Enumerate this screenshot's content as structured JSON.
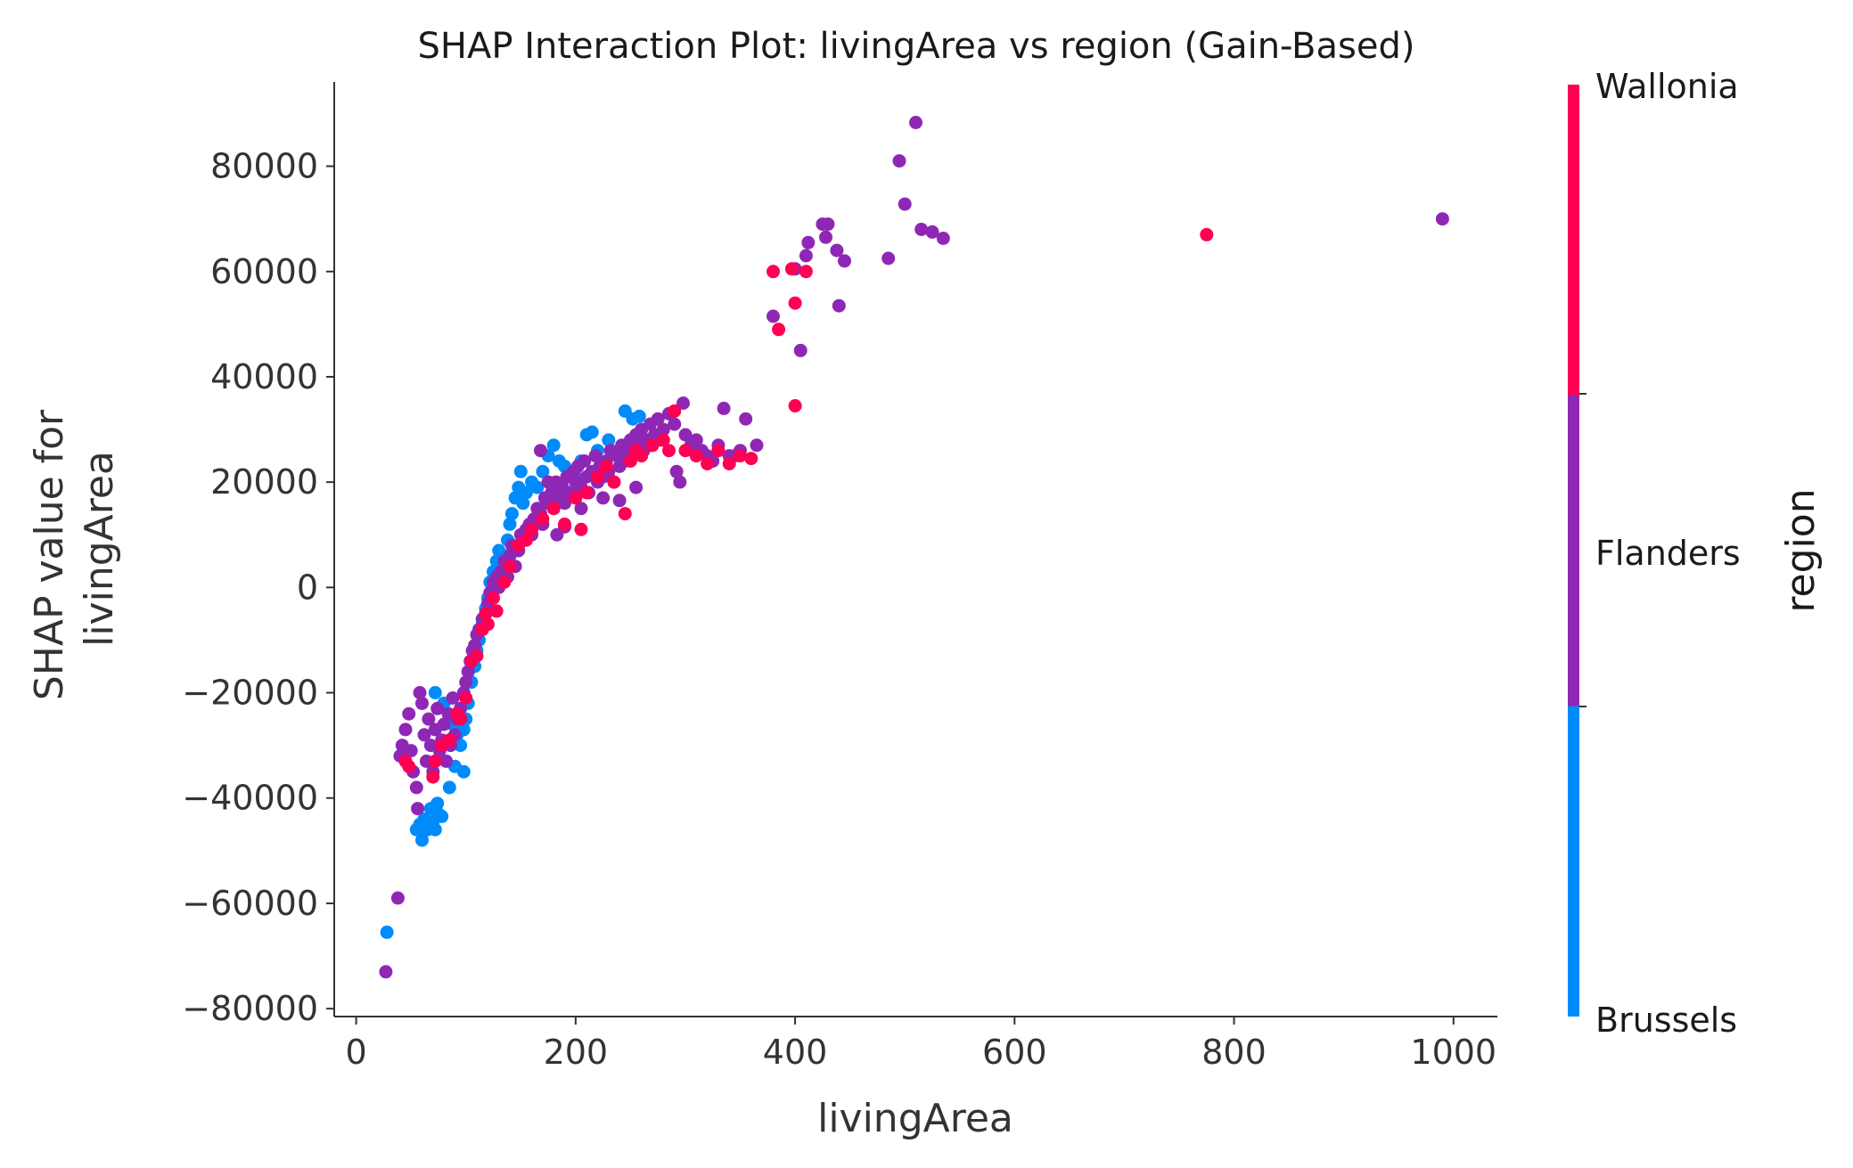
{
  "chart_data": {
    "type": "scatter",
    "title": "SHAP Interaction Plot: livingArea vs region (Gain-Based)",
    "xlabel": "livingArea",
    "ylabel_lines": [
      "SHAP value for",
      "livingArea"
    ],
    "xlim": [
      -20,
      1040
    ],
    "ylim": [
      -81500,
      96000
    ],
    "x_ticks": [
      0,
      200,
      400,
      600,
      800,
      1000
    ],
    "y_ticks": [
      80000,
      60000,
      40000,
      20000,
      0,
      -20000,
      -40000,
      -60000,
      -80000
    ],
    "x_tick_labels": [
      "0",
      "200",
      "400",
      "600",
      "800",
      "1000"
    ],
    "y_tick_labels": [
      "80000",
      "60000",
      "40000",
      "20000",
      "0",
      "−20000",
      "−40000",
      "−60000",
      "−80000"
    ],
    "grid": false,
    "colorbar": {
      "label": "region",
      "categories": [
        "Brussels",
        "Flanders",
        "Wallonia"
      ],
      "colors": [
        "#008bfb",
        "#8f27b5",
        "#ff0052"
      ]
    },
    "series": [
      {
        "name": "Brussels",
        "color": "#008bfb",
        "points": [
          [
            28,
            -65500
          ],
          [
            55,
            -46000
          ],
          [
            58,
            -45000
          ],
          [
            60,
            -48000
          ],
          [
            62,
            -44000
          ],
          [
            65,
            -46000
          ],
          [
            68,
            -42000
          ],
          [
            70,
            -44500
          ],
          [
            72,
            -46000
          ],
          [
            75,
            -43000
          ],
          [
            74,
            -41000
          ],
          [
            78,
            -43500
          ],
          [
            85,
            -38000
          ],
          [
            90,
            -34000
          ],
          [
            95,
            -30000
          ],
          [
            98,
            -27000
          ],
          [
            100,
            -25000
          ],
          [
            102,
            -22000
          ],
          [
            105,
            -18000
          ],
          [
            108,
            -15000
          ],
          [
            110,
            -12000
          ],
          [
            112,
            -10000
          ],
          [
            115,
            -7000
          ],
          [
            118,
            -4000
          ],
          [
            120,
            -2000
          ],
          [
            122,
            1000
          ],
          [
            125,
            3000
          ],
          [
            128,
            5000
          ],
          [
            130,
            7000
          ],
          [
            132,
            4000
          ],
          [
            135,
            6000
          ],
          [
            138,
            9000
          ],
          [
            140,
            12000
          ],
          [
            142,
            14000
          ],
          [
            145,
            17000
          ],
          [
            148,
            19000
          ],
          [
            150,
            22000
          ],
          [
            152,
            16000
          ],
          [
            155,
            18000
          ],
          [
            160,
            20000
          ],
          [
            165,
            19000
          ],
          [
            170,
            22000
          ],
          [
            175,
            25000
          ],
          [
            180,
            27000
          ],
          [
            185,
            24000
          ],
          [
            190,
            23000
          ],
          [
            195,
            22000
          ],
          [
            200,
            21000
          ],
          [
            205,
            24000
          ],
          [
            210,
            29000
          ],
          [
            215,
            29500
          ],
          [
            220,
            26000
          ],
          [
            230,
            28000
          ],
          [
            245,
            33500
          ],
          [
            252,
            32000
          ],
          [
            258,
            32500
          ],
          [
            72,
            -20000
          ],
          [
            80,
            -22000
          ],
          [
            88,
            -26000
          ],
          [
            92,
            -28000
          ],
          [
            98,
            -35000
          ]
        ]
      },
      {
        "name": "Flanders",
        "color": "#8f27b5",
        "points": [
          [
            27,
            -73000
          ],
          [
            38,
            -59000
          ],
          [
            40,
            -32000
          ],
          [
            42,
            -30000
          ],
          [
            45,
            -27000
          ],
          [
            48,
            -24000
          ],
          [
            50,
            -31000
          ],
          [
            52,
            -35000
          ],
          [
            55,
            -38000
          ],
          [
            56,
            -42000
          ],
          [
            58,
            -20000
          ],
          [
            60,
            -22000
          ],
          [
            62,
            -28000
          ],
          [
            64,
            -33000
          ],
          [
            66,
            -25000
          ],
          [
            68,
            -30000
          ],
          [
            70,
            -35000
          ],
          [
            72,
            -27000
          ],
          [
            74,
            -23000
          ],
          [
            76,
            -31000
          ],
          [
            78,
            -29000
          ],
          [
            80,
            -26000
          ],
          [
            82,
            -33000
          ],
          [
            84,
            -24000
          ],
          [
            86,
            -30000
          ],
          [
            88,
            -21000
          ],
          [
            90,
            -28000
          ],
          [
            92,
            -25000
          ],
          [
            95,
            -23000
          ],
          [
            98,
            -20000
          ],
          [
            100,
            -18000
          ],
          [
            102,
            -16000
          ],
          [
            104,
            -14000
          ],
          [
            106,
            -12000
          ],
          [
            108,
            -11000
          ],
          [
            110,
            -9000
          ],
          [
            112,
            -8000
          ],
          [
            115,
            -6000
          ],
          [
            118,
            -5000
          ],
          [
            120,
            -3000
          ],
          [
            122,
            -1000
          ],
          [
            125,
            1000
          ],
          [
            128,
            2000
          ],
          [
            130,
            0
          ],
          [
            132,
            3000
          ],
          [
            135,
            5000
          ],
          [
            138,
            2000
          ],
          [
            140,
            6000
          ],
          [
            142,
            8000
          ],
          [
            145,
            4000
          ],
          [
            148,
            7000
          ],
          [
            150,
            10000
          ],
          [
            152,
            9000
          ],
          [
            155,
            11000
          ],
          [
            158,
            12000
          ],
          [
            160,
            10000
          ],
          [
            162,
            13000
          ],
          [
            165,
            15000
          ],
          [
            168,
            14000
          ],
          [
            170,
            12000
          ],
          [
            172,
            17000
          ],
          [
            175,
            16000
          ],
          [
            178,
            18000
          ],
          [
            180,
            15000
          ],
          [
            182,
            20000
          ],
          [
            185,
            17000
          ],
          [
            188,
            19000
          ],
          [
            190,
            16000
          ],
          [
            192,
            21000
          ],
          [
            195,
            18000
          ],
          [
            198,
            22000
          ],
          [
            200,
            20000
          ],
          [
            202,
            23000
          ],
          [
            205,
            19000
          ],
          [
            208,
            24000
          ],
          [
            210,
            21000
          ],
          [
            212,
            18000
          ],
          [
            215,
            22000
          ],
          [
            218,
            25000
          ],
          [
            220,
            20000
          ],
          [
            222,
            23000
          ],
          [
            225,
            21000
          ],
          [
            228,
            24000
          ],
          [
            230,
            22000
          ],
          [
            232,
            26000
          ],
          [
            235,
            20000
          ],
          [
            238,
            25000
          ],
          [
            240,
            23000
          ],
          [
            242,
            27000
          ],
          [
            245,
            24000
          ],
          [
            248,
            26000
          ],
          [
            250,
            28000
          ],
          [
            252,
            25000
          ],
          [
            255,
            29000
          ],
          [
            258,
            27000
          ],
          [
            260,
            30000
          ],
          [
            262,
            26000
          ],
          [
            265,
            28000
          ],
          [
            268,
            31000
          ],
          [
            270,
            27000
          ],
          [
            272,
            29000
          ],
          [
            275,
            32000
          ],
          [
            278,
            28000
          ],
          [
            280,
            30000
          ],
          [
            285,
            33000
          ],
          [
            290,
            31000
          ],
          [
            292,
            22000
          ],
          [
            295,
            20000
          ],
          [
            298,
            35000
          ],
          [
            300,
            29000
          ],
          [
            305,
            27000
          ],
          [
            310,
            28000
          ],
          [
            315,
            26000
          ],
          [
            320,
            25000
          ],
          [
            325,
            24000
          ],
          [
            330,
            27000
          ],
          [
            335,
            34000
          ],
          [
            340,
            25000
          ],
          [
            345,
            25000
          ],
          [
            350,
            26000
          ],
          [
            355,
            32000
          ],
          [
            365,
            27000
          ],
          [
            183,
            10000
          ],
          [
            190,
            11500
          ],
          [
            175,
            20000
          ],
          [
            168,
            26000
          ],
          [
            205,
            15000
          ],
          [
            225,
            17000
          ],
          [
            240,
            16500
          ],
          [
            255,
            19000
          ],
          [
            380,
            51500
          ],
          [
            400,
            60500
          ],
          [
            405,
            45000
          ],
          [
            410,
            63000
          ],
          [
            412,
            65500
          ],
          [
            425,
            69000
          ],
          [
            428,
            66500
          ],
          [
            430,
            69000
          ],
          [
            438,
            64000
          ],
          [
            440,
            53500
          ],
          [
            445,
            62000
          ],
          [
            485,
            62500
          ],
          [
            495,
            81000
          ],
          [
            500,
            72800
          ],
          [
            510,
            88300
          ],
          [
            515,
            68000
          ],
          [
            525,
            67500
          ],
          [
            535,
            66300
          ],
          [
            990,
            70000
          ]
        ]
      },
      {
        "name": "Wallonia",
        "color": "#ff0052",
        "points": [
          [
            45,
            -33000
          ],
          [
            48,
            -34000
          ],
          [
            70,
            -36000
          ],
          [
            72,
            -33000
          ],
          [
            78,
            -30000
          ],
          [
            85,
            -29000
          ],
          [
            92,
            -24000
          ],
          [
            95,
            -25000
          ],
          [
            100,
            -21000
          ],
          [
            105,
            -14000
          ],
          [
            110,
            -13000
          ],
          [
            115,
            -8000
          ],
          [
            118,
            -5000
          ],
          [
            120,
            -7000
          ],
          [
            125,
            -2000
          ],
          [
            128,
            -4500
          ],
          [
            135,
            1000
          ],
          [
            140,
            4000
          ],
          [
            148,
            8000
          ],
          [
            155,
            9000
          ],
          [
            160,
            11000
          ],
          [
            170,
            13000
          ],
          [
            180,
            15000
          ],
          [
            190,
            12000
          ],
          [
            200,
            17000
          ],
          [
            205,
            11000
          ],
          [
            210,
            18000
          ],
          [
            220,
            21000
          ],
          [
            228,
            23000
          ],
          [
            235,
            20000
          ],
          [
            245,
            14000
          ],
          [
            250,
            24000
          ],
          [
            255,
            26000
          ],
          [
            260,
            25000
          ],
          [
            270,
            27000
          ],
          [
            280,
            28000
          ],
          [
            285,
            26000
          ],
          [
            290,
            33500
          ],
          [
            300,
            26000
          ],
          [
            310,
            25000
          ],
          [
            320,
            23500
          ],
          [
            330,
            26000
          ],
          [
            340,
            23500
          ],
          [
            350,
            25000
          ],
          [
            360,
            24500
          ],
          [
            380,
            60000
          ],
          [
            385,
            49000
          ],
          [
            397,
            60500
          ],
          [
            400,
            34500
          ],
          [
            400,
            54000
          ],
          [
            410,
            60000
          ],
          [
            775,
            67000
          ]
        ]
      }
    ]
  }
}
